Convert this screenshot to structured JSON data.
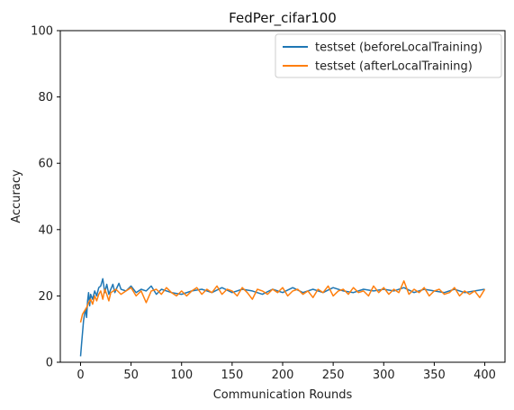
{
  "chart_data": {
    "type": "line",
    "title": "FedPer_cifar100",
    "xlabel": "Communication Rounds",
    "ylabel": "Accuracy",
    "xlim": [
      -20,
      420
    ],
    "ylim": [
      0,
      100
    ],
    "xticks": [
      0,
      50,
      100,
      150,
      200,
      250,
      300,
      350,
      400
    ],
    "yticks": [
      0,
      20,
      40,
      60,
      80,
      100
    ],
    "grid": false,
    "legend_position": "top-right",
    "series": [
      {
        "name": "testset (beforeLocalTraining)",
        "color": "#1f77b4",
        "x": [
          0,
          1,
          2,
          3,
          4,
          5,
          6,
          7,
          8,
          9,
          10,
          12,
          14,
          16,
          18,
          20,
          22,
          24,
          26,
          28,
          30,
          32,
          34,
          36,
          38,
          40,
          45,
          50,
          55,
          60,
          65,
          70,
          75,
          80,
          90,
          100,
          110,
          120,
          130,
          140,
          150,
          160,
          170,
          180,
          190,
          200,
          210,
          220,
          230,
          240,
          250,
          260,
          270,
          280,
          290,
          300,
          310,
          320,
          330,
          340,
          350,
          360,
          370,
          380,
          390,
          400
        ],
        "values": [
          1.8,
          5.5,
          9.0,
          12.5,
          14.5,
          16.0,
          13.5,
          18.5,
          21.0,
          17.0,
          20.5,
          19.0,
          21.5,
          20.0,
          22.5,
          23.0,
          25.2,
          21.0,
          23.5,
          20.5,
          22.0,
          23.5,
          21.0,
          22.5,
          23.8,
          22.0,
          21.5,
          23.0,
          21.0,
          22.0,
          21.5,
          23.0,
          20.5,
          22.0,
          21.0,
          20.5,
          21.5,
          22.0,
          21.0,
          22.5,
          21.0,
          22.0,
          21.5,
          20.5,
          22.0,
          21.0,
          22.5,
          21.0,
          22.0,
          21.0,
          22.5,
          21.5,
          21.0,
          22.0,
          21.5,
          22.0,
          21.5,
          22.5,
          21.0,
          22.0,
          21.5,
          21.0,
          22.0,
          21.0,
          21.5,
          22.0
        ]
      },
      {
        "name": "testset (afterLocalTraining)",
        "color": "#ff7f0e",
        "x": [
          0,
          2,
          4,
          6,
          8,
          10,
          12,
          14,
          16,
          18,
          20,
          22,
          24,
          26,
          28,
          30,
          35,
          40,
          45,
          50,
          55,
          60,
          65,
          70,
          75,
          80,
          85,
          90,
          95,
          100,
          105,
          110,
          115,
          120,
          125,
          130,
          135,
          140,
          145,
          150,
          155,
          160,
          165,
          170,
          175,
          180,
          185,
          190,
          195,
          200,
          205,
          210,
          215,
          220,
          225,
          230,
          235,
          240,
          245,
          250,
          255,
          260,
          265,
          270,
          275,
          280,
          285,
          290,
          295,
          300,
          305,
          310,
          315,
          320,
          325,
          330,
          335,
          340,
          345,
          350,
          355,
          360,
          365,
          370,
          375,
          380,
          385,
          390,
          395,
          400
        ],
        "values": [
          12.0,
          14.5,
          15.5,
          16.5,
          18.0,
          19.0,
          17.5,
          20.0,
          18.5,
          20.5,
          21.5,
          19.0,
          22.0,
          20.5,
          18.5,
          21.0,
          22.0,
          20.5,
          21.5,
          22.5,
          20.0,
          21.5,
          18.0,
          21.5,
          22.0,
          20.5,
          22.5,
          21.0,
          20.0,
          21.5,
          20.0,
          21.5,
          22.5,
          20.5,
          22.0,
          21.0,
          23.0,
          20.5,
          22.0,
          21.5,
          20.0,
          22.5,
          21.0,
          19.0,
          22.0,
          21.5,
          20.5,
          22.0,
          21.0,
          22.5,
          20.0,
          21.5,
          22.0,
          20.5,
          21.5,
          19.5,
          22.0,
          21.0,
          23.0,
          20.0,
          21.5,
          22.0,
          20.5,
          22.5,
          21.0,
          21.5,
          20.0,
          23.0,
          21.0,
          22.5,
          20.5,
          22.0,
          21.0,
          24.5,
          20.5,
          22.0,
          21.0,
          22.5,
          20.0,
          21.5,
          22.0,
          20.5,
          21.0,
          22.5,
          20.0,
          21.5,
          20.5,
          21.5,
          19.5,
          22.0
        ]
      }
    ]
  }
}
